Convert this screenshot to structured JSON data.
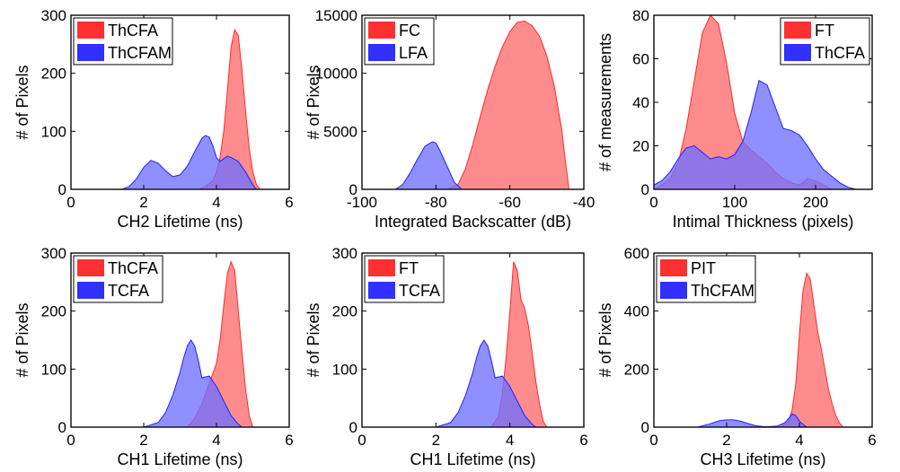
{
  "colors": {
    "red_fill": "#ff6b6b",
    "red_stroke": "#ff2a2a",
    "blue_fill": "#7070ff",
    "blue_stroke": "#2020ff"
  },
  "chart_data": [
    {
      "type": "area",
      "xlabel": "CH2 Lifetime (ns)",
      "ylabel": "# of Pixels",
      "xlim": [
        0,
        6
      ],
      "ylim": [
        0,
        300
      ],
      "xticks": [
        0,
        2,
        4,
        6
      ],
      "yticks": [
        0,
        100,
        200,
        300
      ],
      "xtick_labels": [
        "0",
        "2",
        "4",
        "6"
      ],
      "ytick_labels": [
        "0",
        "100",
        "200",
        "300"
      ],
      "legend_position": "top-left",
      "series": [
        {
          "name": "ThCFA",
          "color": "red",
          "x": [
            3.5,
            3.7,
            3.9,
            4.0,
            4.1,
            4.2,
            4.3,
            4.4,
            4.5,
            4.6,
            4.7,
            4.8,
            4.9,
            5.0,
            5.1,
            5.2
          ],
          "y": [
            0,
            5,
            15,
            30,
            55,
            100,
            170,
            245,
            275,
            265,
            205,
            135,
            70,
            30,
            8,
            0
          ]
        },
        {
          "name": "ThCFAM",
          "color": "blue",
          "x": [
            1.4,
            1.6,
            1.8,
            2.0,
            2.2,
            2.4,
            2.6,
            2.8,
            3.0,
            3.2,
            3.4,
            3.6,
            3.7,
            3.8,
            3.9,
            4.0,
            4.1,
            4.2,
            4.3,
            4.4,
            4.6,
            4.8,
            5.0,
            5.1
          ],
          "y": [
            0,
            5,
            18,
            38,
            50,
            45,
            32,
            22,
            25,
            40,
            65,
            88,
            93,
            90,
            75,
            55,
            48,
            53,
            57,
            55,
            48,
            30,
            8,
            0
          ]
        }
      ]
    },
    {
      "type": "area",
      "xlabel": "Integrated Backscatter (dB)",
      "ylabel": "# of Pixels",
      "xlim": [
        -100,
        -40
      ],
      "ylim": [
        0,
        15000
      ],
      "xticks": [
        -100,
        -80,
        -60,
        -40
      ],
      "yticks": [
        0,
        5000,
        10000,
        15000
      ],
      "xtick_labels": [
        "-100",
        "-80",
        "-60",
        "-40"
      ],
      "ytick_labels": [
        "0",
        "5000",
        "10000",
        "15000"
      ],
      "legend_position": "top-left",
      "series": [
        {
          "name": "FC",
          "color": "red",
          "x": [
            -77,
            -74,
            -72,
            -70,
            -68,
            -66,
            -64,
            -62,
            -60,
            -58,
            -56,
            -54,
            -52,
            -50,
            -48,
            -46,
            -45,
            -44
          ],
          "y": [
            0,
            400,
            1800,
            3900,
            6300,
            8600,
            10600,
            12300,
            13600,
            14400,
            14500,
            14100,
            13200,
            11500,
            8900,
            5200,
            2500,
            0
          ]
        },
        {
          "name": "LFA",
          "color": "blue",
          "x": [
            -91,
            -89,
            -87,
            -85,
            -83,
            -81,
            -80,
            -79,
            -77,
            -75,
            -73
          ],
          "y": [
            0,
            400,
            1400,
            2600,
            3700,
            4100,
            4000,
            3400,
            2000,
            600,
            0
          ]
        }
      ]
    },
    {
      "type": "area",
      "xlabel": "Intimal Thickness (pixels)",
      "ylabel": "# of measurements",
      "xlim": [
        0,
        270
      ],
      "ylim": [
        0,
        80
      ],
      "xticks": [
        0,
        100,
        200
      ],
      "yticks": [
        0,
        20,
        40,
        60,
        80
      ],
      "xtick_labels": [
        "0",
        "100",
        "200"
      ],
      "ytick_labels": [
        "0",
        "20",
        "40",
        "60",
        "80"
      ],
      "legend_position": "top-right",
      "series": [
        {
          "name": "FT",
          "color": "red",
          "x": [
            0,
            10,
            20,
            30,
            40,
            50,
            60,
            70,
            80,
            90,
            100,
            110,
            120,
            130,
            140,
            150,
            160,
            170,
            180,
            190,
            200,
            210,
            220
          ],
          "y": [
            0,
            2,
            5,
            12,
            28,
            50,
            72,
            80,
            76,
            58,
            35,
            22,
            18,
            15,
            12,
            8,
            5,
            3,
            2,
            5,
            4,
            2,
            0
          ]
        },
        {
          "name": "ThCFA",
          "color": "blue",
          "x": [
            0,
            10,
            20,
            30,
            40,
            50,
            60,
            70,
            80,
            90,
            100,
            110,
            120,
            130,
            140,
            150,
            160,
            170,
            180,
            190,
            200,
            210,
            220,
            230,
            240,
            250
          ],
          "y": [
            2,
            4,
            8,
            14,
            19,
            20,
            17,
            14,
            15,
            14,
            16,
            22,
            35,
            50,
            48,
            38,
            28,
            27,
            25,
            20,
            14,
            9,
            6,
            3,
            1,
            0
          ]
        }
      ]
    },
    {
      "type": "area",
      "xlabel": "CH1 Lifetime (ns)",
      "ylabel": "# of Pixels",
      "xlim": [
        0,
        6
      ],
      "ylim": [
        0,
        300
      ],
      "xticks": [
        0,
        2,
        4,
        6
      ],
      "yticks": [
        0,
        100,
        200,
        300
      ],
      "xtick_labels": [
        "0",
        "2",
        "4",
        "6"
      ],
      "ytick_labels": [
        "0",
        "100",
        "200",
        "300"
      ],
      "legend_position": "top-left",
      "series": [
        {
          "name": "ThCFA",
          "color": "red",
          "x": [
            3.2,
            3.4,
            3.6,
            3.8,
            4.0,
            4.1,
            4.2,
            4.3,
            4.4,
            4.5,
            4.6,
            4.7,
            4.8,
            4.9,
            5.0
          ],
          "y": [
            0,
            15,
            40,
            75,
            110,
            150,
            210,
            265,
            285,
            270,
            200,
            130,
            65,
            20,
            0
          ]
        },
        {
          "name": "TCFA",
          "color": "blue",
          "x": [
            2.0,
            2.4,
            2.6,
            2.8,
            3.0,
            3.1,
            3.2,
            3.3,
            3.4,
            3.5,
            3.6,
            3.8,
            4.0,
            4.2,
            4.4,
            4.6,
            4.7
          ],
          "y": [
            0,
            8,
            25,
            55,
            95,
            120,
            140,
            150,
            140,
            115,
            85,
            88,
            70,
            45,
            20,
            5,
            0
          ]
        }
      ]
    },
    {
      "type": "area",
      "xlabel": "CH1 Lifetime (ns)",
      "ylabel": "# of Pixels",
      "xlim": [
        0,
        6
      ],
      "ylim": [
        0,
        300
      ],
      "xticks": [
        0,
        2,
        4,
        6
      ],
      "yticks": [
        0,
        100,
        200,
        300
      ],
      "xtick_labels": [
        "0",
        "2",
        "4",
        "6"
      ],
      "ytick_labels": [
        "0",
        "100",
        "200",
        "300"
      ],
      "legend_position": "top-left",
      "series": [
        {
          "name": "FT",
          "color": "red",
          "x": [
            3.5,
            3.7,
            3.8,
            3.9,
            4.0,
            4.1,
            4.2,
            4.3,
            4.4,
            4.5,
            4.6,
            4.7,
            4.8,
            4.9,
            5.0
          ],
          "y": [
            0,
            20,
            60,
            120,
            200,
            285,
            270,
            220,
            205,
            175,
            130,
            80,
            40,
            10,
            0
          ]
        },
        {
          "name": "TCFA",
          "color": "blue",
          "x": [
            2.0,
            2.4,
            2.6,
            2.8,
            3.0,
            3.1,
            3.2,
            3.3,
            3.4,
            3.5,
            3.6,
            3.8,
            4.0,
            4.2,
            4.4,
            4.6,
            4.7
          ],
          "y": [
            0,
            8,
            25,
            55,
            95,
            120,
            140,
            150,
            140,
            115,
            85,
            88,
            70,
            45,
            20,
            5,
            0
          ]
        }
      ]
    },
    {
      "type": "area",
      "xlabel": "CH3 Lifetime (ns)",
      "ylabel": "# of Pixels",
      "xlim": [
        0,
        6
      ],
      "ylim": [
        0,
        600
      ],
      "xticks": [
        0,
        2,
        4,
        6
      ],
      "yticks": [
        0,
        200,
        400,
        600
      ],
      "xtick_labels": [
        "0",
        "2",
        "4",
        "6"
      ],
      "ytick_labels": [
        "0",
        "200",
        "400",
        "600"
      ],
      "legend_position": "top-left",
      "series": [
        {
          "name": "PIT",
          "color": "red",
          "x": [
            3.5,
            3.7,
            3.8,
            3.9,
            4.0,
            4.1,
            4.2,
            4.3,
            4.4,
            4.5,
            4.6,
            4.7,
            4.8,
            4.9,
            5.0,
            5.1,
            5.2
          ],
          "y": [
            0,
            20,
            60,
            150,
            320,
            470,
            530,
            510,
            420,
            330,
            270,
            200,
            130,
            80,
            40,
            15,
            0
          ]
        },
        {
          "name": "ThCFAM",
          "color": "blue",
          "x": [
            1.2,
            1.5,
            1.8,
            2.0,
            2.2,
            2.4,
            2.6,
            2.8,
            3.0,
            3.2,
            3.4,
            3.6,
            3.7,
            3.8,
            3.9,
            4.0,
            4.2
          ],
          "y": [
            0,
            10,
            22,
            25,
            25,
            20,
            12,
            5,
            2,
            2,
            4,
            15,
            30,
            45,
            40,
            20,
            0
          ]
        }
      ]
    }
  ]
}
